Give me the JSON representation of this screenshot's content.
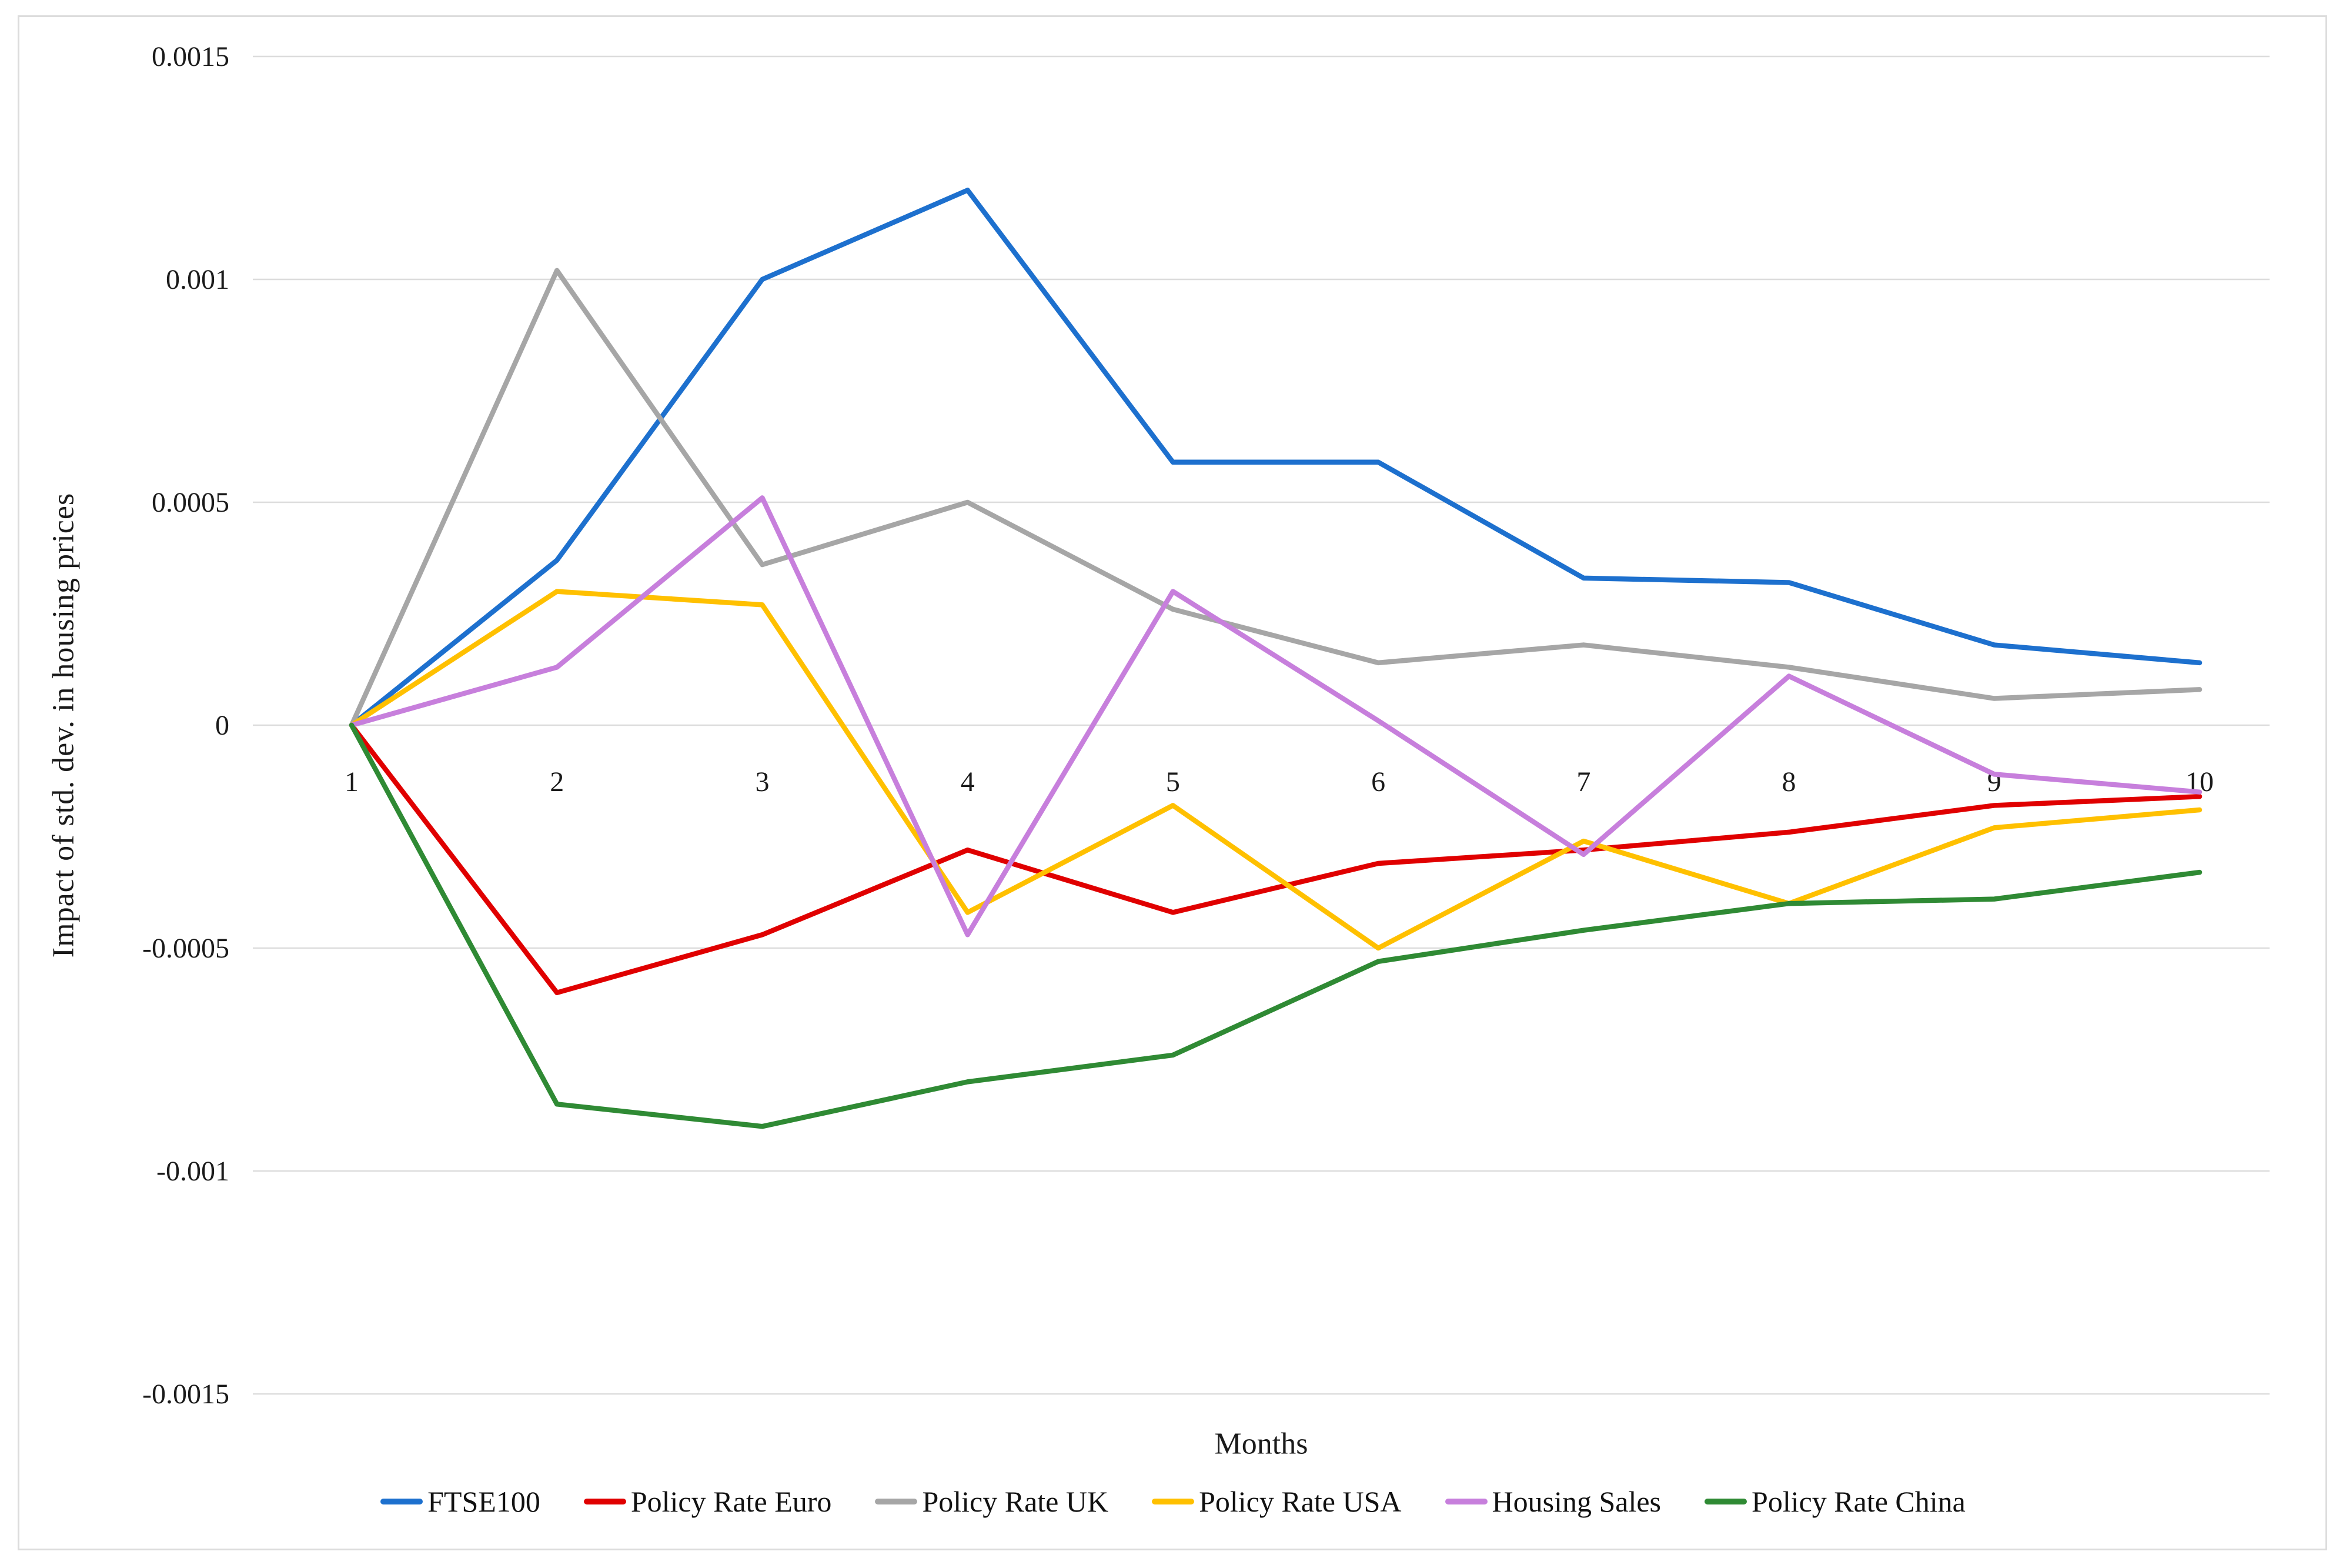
{
  "chart_data": {
    "type": "line",
    "title": "",
    "xlabel": "Months",
    "ylabel": "Impact of std. dev. in housing prices",
    "x": [
      1,
      2,
      3,
      4,
      5,
      6,
      7,
      8,
      9,
      10
    ],
    "x_tick_labels": [
      "1",
      "2",
      "3",
      "4",
      "5",
      "6",
      "7",
      "8",
      "9",
      "10"
    ],
    "ylim": [
      -0.0015,
      0.0015
    ],
    "yticks": [
      0.0015,
      0.001,
      0.0005,
      0,
      -0.0005,
      -0.001,
      -0.0015
    ],
    "ytick_labels": [
      "0.0015",
      "0.001",
      "0.0005",
      "0",
      "-0.0005",
      "-0.001",
      "-0.0015"
    ],
    "grid": true,
    "legend_position": "bottom",
    "gridline_color": "#dcdcdc",
    "series": [
      {
        "name": "FTSE100",
        "color": "#1d70ce",
        "values": [
          0,
          0.00037,
          0.001,
          0.0012,
          0.00059,
          0.00059,
          0.00033,
          0.00032,
          0.00018,
          0.00014
        ]
      },
      {
        "name": "Policy Rate Euro",
        "color": "#e00000",
        "values": [
          0,
          -0.0006,
          -0.00047,
          -0.00028,
          -0.00042,
          -0.00031,
          -0.00028,
          -0.00024,
          -0.00018,
          -0.00016
        ]
      },
      {
        "name": "Policy Rate UK",
        "color": "#a6a6a6",
        "values": [
          0,
          0.00102,
          0.00036,
          0.0005,
          0.00026,
          0.00014,
          0.00018,
          0.00013,
          6e-05,
          8e-05
        ]
      },
      {
        "name": "Policy Rate USA",
        "color": "#ffc000",
        "values": [
          0,
          0.0003,
          0.00027,
          -0.00042,
          -0.00018,
          -0.0005,
          -0.00026,
          -0.0004,
          -0.00023,
          -0.00019
        ]
      },
      {
        "name": "Housing Sales",
        "color": "#c77fdc",
        "values": [
          0,
          0.00013,
          0.00051,
          -0.00047,
          0.0003,
          1e-05,
          -0.00029,
          0.00011,
          -0.00011,
          -0.00015
        ]
      },
      {
        "name": "Policy Rate China",
        "color": "#2f8a34",
        "values": [
          0,
          -0.00085,
          -0.0009,
          -0.0008,
          -0.00074,
          -0.00053,
          -0.00046,
          -0.0004,
          -0.00039,
          -0.00033
        ]
      }
    ]
  }
}
